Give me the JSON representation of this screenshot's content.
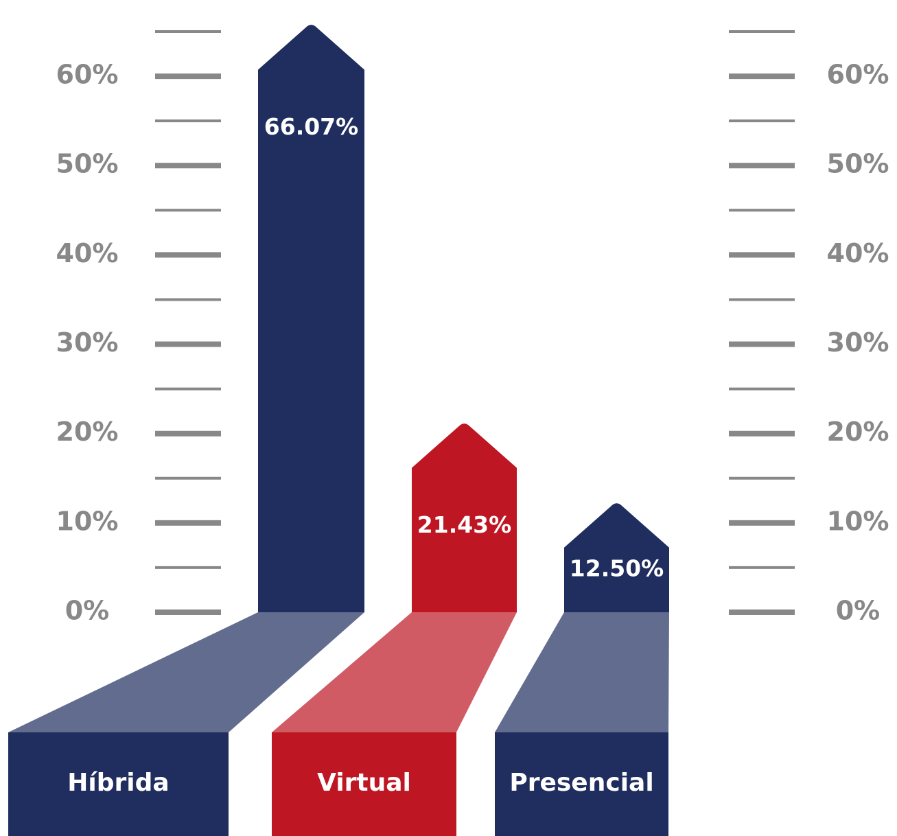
{
  "chart_data": {
    "type": "bar",
    "categories": [
      "Híbrida",
      "Virtual",
      "Presencial"
    ],
    "values": [
      66.07,
      21.43,
      12.5
    ],
    "value_labels": [
      "66.07%",
      "21.43%",
      "12.50%"
    ],
    "colors": [
      "#1f2e5e",
      "#be1622",
      "#1f2e5e"
    ],
    "ylim": [
      0,
      65
    ],
    "yticks": [
      {
        "value": 0,
        "label": "0%"
      },
      {
        "value": 10,
        "label": "10%"
      },
      {
        "value": 20,
        "label": "20%"
      },
      {
        "value": 30,
        "label": "30%"
      },
      {
        "value": 40,
        "label": "40%"
      },
      {
        "value": 50,
        "label": "50%"
      },
      {
        "value": 60,
        "label": "60%"
      }
    ],
    "yminor": [
      5,
      15,
      25,
      35,
      45,
      55,
      65
    ]
  }
}
